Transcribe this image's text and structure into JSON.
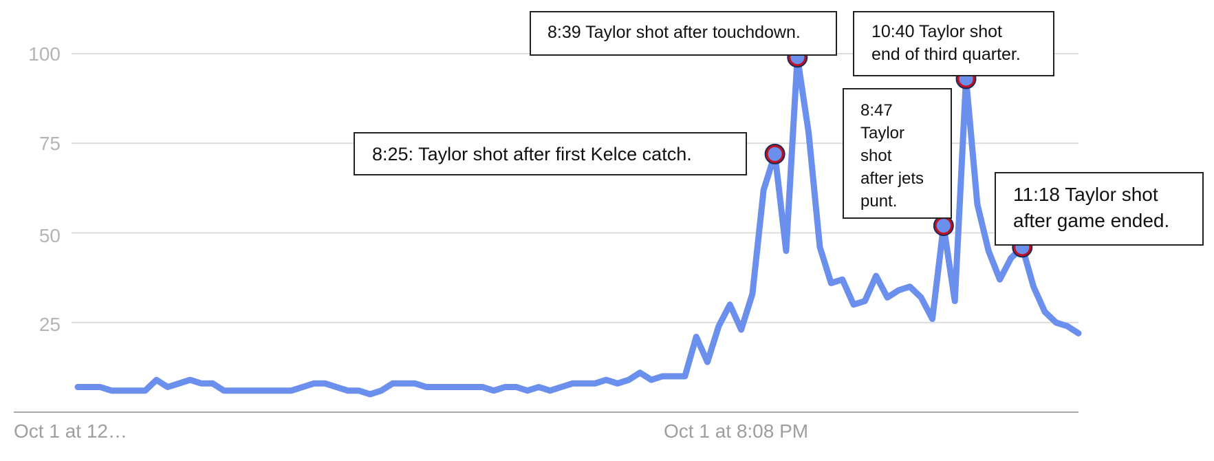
{
  "chart_data": {
    "type": "line",
    "title": "",
    "xlabel": "",
    "ylabel": "",
    "ylim": [
      0,
      100
    ],
    "y_ticks": [
      "25",
      "50",
      "75",
      "100"
    ],
    "x_tick_labels": [
      "Oct 1 at 12…",
      "Oct 1 at 8:08 PM"
    ],
    "grid": true,
    "series": [
      {
        "values": [
          7,
          7,
          7,
          6,
          6,
          6,
          6,
          9,
          7,
          8,
          9,
          8,
          8,
          6,
          6,
          6,
          6,
          6,
          6,
          6,
          7,
          8,
          8,
          7,
          6,
          6,
          5,
          6,
          8,
          8,
          8,
          7,
          7,
          7,
          7,
          7,
          7,
          6,
          7,
          7,
          6,
          7,
          6,
          7,
          8,
          8,
          8,
          9,
          8,
          9,
          11,
          9,
          10,
          10,
          10,
          21,
          14,
          24,
          30,
          23,
          33,
          62,
          72,
          45,
          99,
          78,
          46,
          36,
          37,
          30,
          31,
          38,
          32,
          34,
          35,
          32,
          26,
          52,
          31,
          93,
          58,
          45,
          37,
          43,
          46,
          35,
          28,
          25,
          24,
          22
        ]
      }
    ],
    "annotations": [
      {
        "point_index": 62,
        "value": 72,
        "text": "8:25: Taylor shot after first Kelce catch."
      },
      {
        "point_index": 64,
        "value": 99,
        "text": "8:39 Taylor shot after touchdown."
      },
      {
        "point_index": 77,
        "value": 52,
        "text": "8:47\nTaylor\nshot\nafter jets\npunt."
      },
      {
        "point_index": 79,
        "value": 93,
        "text": "10:40 Taylor shot\nend of third quarter."
      },
      {
        "point_index": 84,
        "value": 46,
        "text": "11:18 Taylor shot\nafter game ended."
      }
    ],
    "colors": {
      "line": "#6b8fec",
      "marker_outline": "#c0121f",
      "grid": "#dcdcdc",
      "axis": "#a9a9a9"
    }
  }
}
